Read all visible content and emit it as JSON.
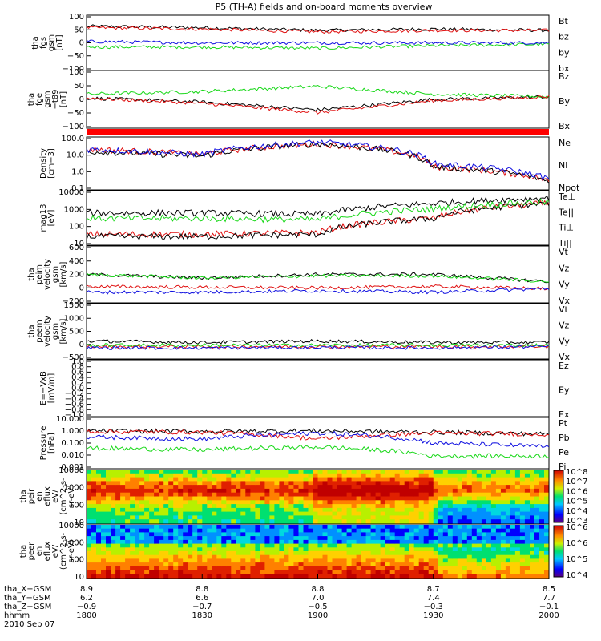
{
  "title": "P5 (TH-A) fields and on-board moments overview",
  "colors": {
    "black": "#000000",
    "red": "#e01010",
    "green": "#18d818",
    "blue": "#1010e0",
    "bar_red": "#ff0000"
  },
  "panels": [
    {
      "id": "fgs",
      "ylabel": [
        "tha",
        "fgs",
        "gsm",
        "[nT]"
      ],
      "ticks": [
        "100",
        "50",
        "0",
        "−50",
        "−100"
      ],
      "legend": [
        {
          "text": "Bt",
          "color": "black"
        },
        {
          "text": "bz",
          "color": "red"
        },
        {
          "text": "by",
          "color": "green"
        },
        {
          "text": "bx",
          "color": "blue"
        }
      ]
    },
    {
      "id": "fge",
      "ylabel": [
        "tha",
        "fge",
        "gsm",
        "−t89",
        "[nT]"
      ],
      "ticks": [
        "100",
        "50",
        "0",
        "−50",
        "−100"
      ],
      "legend": [
        {
          "text": "Bz",
          "color": "black"
        },
        {
          "text": "By",
          "color": "green"
        },
        {
          "text": "Bx",
          "color": "red"
        }
      ]
    },
    {
      "id": "density",
      "ylabel": [
        "Density",
        "[cm−3]"
      ],
      "ticks": [
        "100.0",
        "10.0",
        "1.0",
        "0.1"
      ],
      "legend": [
        {
          "text": "Ne",
          "color": "red"
        },
        {
          "text": "Ni",
          "color": "black"
        },
        {
          "text": "Npot",
          "color": "blue"
        }
      ]
    },
    {
      "id": "temp",
      "ylabel": [
        "mag13",
        "[eV]"
      ],
      "ticks": [
        "10000",
        "1000",
        "100",
        "10"
      ],
      "legend": [
        {
          "text": "Te⊥",
          "color": "red"
        },
        {
          "text": "Te||",
          "color": "black"
        },
        {
          "text": "Ti⊥",
          "color": "black"
        },
        {
          "text": "Ti||",
          "color": "green"
        }
      ]
    },
    {
      "id": "peim",
      "ylabel": [
        "tha",
        "peim",
        "velocity",
        "gsm",
        "[km/s]"
      ],
      "ticks": [
        "600",
        "400",
        "200",
        "0",
        "−200"
      ],
      "legend": [
        {
          "text": "Vt",
          "color": "black"
        },
        {
          "text": "Vz",
          "color": "red"
        },
        {
          "text": "Vy",
          "color": "green"
        },
        {
          "text": "Vx",
          "color": "blue"
        }
      ]
    },
    {
      "id": "peem",
      "ylabel": [
        "tha",
        "peem",
        "velocity",
        "gsm",
        "[km/s]"
      ],
      "ticks": [
        "1500",
        "1000",
        "500",
        "0",
        "−500"
      ],
      "legend": [
        {
          "text": "Vt",
          "color": "black"
        },
        {
          "text": "Vz",
          "color": "red"
        },
        {
          "text": "Vy",
          "color": "green"
        },
        {
          "text": "Vx",
          "color": "blue"
        }
      ]
    },
    {
      "id": "efield",
      "ylabel": [
        "E=−VxB",
        "[mV/m]"
      ],
      "ticks": [
        "1.0",
        "0.8",
        "0.6",
        "0.4",
        "0.2",
        "0.0",
        "−0.2",
        "−0.4",
        "−0.6",
        "−0.8",
        "−1.0"
      ],
      "legend": [
        {
          "text": "Ez",
          "color": "red"
        },
        {
          "text": "Ey",
          "color": "green"
        },
        {
          "text": "Ex",
          "color": "blue"
        }
      ]
    },
    {
      "id": "pressure",
      "ylabel": [
        "Pressure",
        "[nPa]"
      ],
      "ticks": [
        "10.000",
        "1.000",
        "0.100",
        "0.010",
        "0.001"
      ],
      "legend": [
        {
          "text": "Pt",
          "color": "black"
        },
        {
          "text": "Pb",
          "color": "red"
        },
        {
          "text": "Pe",
          "color": "green"
        },
        {
          "text": "Pi",
          "color": "blue"
        }
      ]
    },
    {
      "id": "peir",
      "ylabel": [
        "tha",
        "peir",
        "en",
        "eflux",
        "eV/",
        "(cm^2-s-",
        "sr-eV)"
      ],
      "ticks": [
        "10000",
        "1000",
        "100",
        "10"
      ],
      "colorbar_ticks": [
        "10^8",
        "10^7",
        "10^6",
        "10^5",
        "10^4",
        "10^3"
      ]
    },
    {
      "id": "peer",
      "ylabel": [
        "tha",
        "peer",
        "en",
        "eflux",
        "eV/",
        "(cm^2-s-",
        "sr-eV)"
      ],
      "ticks": [
        "10000",
        "1000",
        "100",
        "10"
      ],
      "colorbar_ticks": [
        "10^6",
        "10^6",
        "10^5",
        "10^4"
      ]
    }
  ],
  "xaxis": {
    "rows": [
      {
        "label": "tha_X−GSM",
        "values": [
          "8.9",
          "8.8",
          "8.8",
          "8.7",
          "8.5"
        ]
      },
      {
        "label": "tha_Y−GSM",
        "values": [
          "6.2",
          "6.6",
          "7.0",
          "7.4",
          "7.7"
        ]
      },
      {
        "label": "tha_Z−GSM",
        "values": [
          "−0.9",
          "−0.7",
          "−0.5",
          "−0.3",
          "−0.1"
        ]
      },
      {
        "label": "hhmm",
        "values": [
          "1800",
          "1830",
          "1900",
          "1930",
          "2000"
        ]
      }
    ],
    "date": "2010 Sep 07"
  },
  "chart_data": {
    "type": "line",
    "title": "P5 (TH-A) fields and on-board moments overview",
    "x": [
      "1800",
      "1830",
      "1900",
      "1930",
      "2000"
    ],
    "xlabel": "hhmm",
    "date": "2010 Sep 07",
    "panels": [
      {
        "name": "tha fgs gsm [nT]",
        "ylim": [
          -100,
          100
        ],
        "series": [
          {
            "name": "Bt",
            "color": "black",
            "values": [
              60,
              55,
              45,
              50,
              45
            ]
          },
          {
            "name": "bz",
            "color": "red",
            "values": [
              55,
              50,
              40,
              45,
              45
            ]
          },
          {
            "name": "by",
            "color": "green",
            "values": [
              -15,
              -15,
              -20,
              -10,
              -5
            ]
          },
          {
            "name": "bx",
            "color": "blue",
            "values": [
              5,
              0,
              0,
              0,
              0
            ]
          }
        ]
      },
      {
        "name": "tha fge gsm -t89 [nT]",
        "ylim": [
          -120,
          100
        ],
        "series": [
          {
            "name": "Bz",
            "color": "black",
            "values": [
              -5,
              -20,
              -50,
              -10,
              0
            ]
          },
          {
            "name": "By",
            "color": "green",
            "values": [
              10,
              20,
              40,
              10,
              0
            ]
          },
          {
            "name": "Bx",
            "color": "red",
            "values": [
              -5,
              -25,
              -60,
              -15,
              0
            ]
          }
        ]
      },
      {
        "name": "Density [cm-3]",
        "scale": "log",
        "ylim": [
          0.1,
          100
        ],
        "series": [
          {
            "name": "Ne",
            "color": "red",
            "values": [
              20,
              10,
              40,
              2,
              0.3
            ]
          },
          {
            "name": "Ni",
            "color": "black",
            "values": [
              15,
              8,
              40,
              2,
              0.3
            ]
          },
          {
            "name": "Npot",
            "color": "blue",
            "values": [
              20,
              10,
              50,
              3,
              0.4
            ]
          }
        ]
      },
      {
        "name": "mag13 [eV]",
        "scale": "log",
        "ylim": [
          10,
          10000
        ],
        "series": [
          {
            "name": "Te⊥",
            "color": "red",
            "values": [
              40,
              40,
              50,
              300,
              2000
            ]
          },
          {
            "name": "Te||",
            "color": "black",
            "values": [
              30,
              30,
              40,
              300,
              2000
            ]
          },
          {
            "name": "Ti⊥",
            "color": "black",
            "values": [
              600,
              600,
              500,
              2000,
              4000
            ]
          },
          {
            "name": "Ti||",
            "color": "green",
            "values": [
              300,
              300,
              250,
              1000,
              2500
            ]
          }
        ]
      },
      {
        "name": "tha peim velocity gsm [km/s]",
        "ylim": [
          -200,
          600
        ],
        "series": [
          {
            "name": "Vt",
            "color": "black",
            "values": [
              200,
              150,
              200,
              200,
              100
            ]
          },
          {
            "name": "Vz",
            "color": "red",
            "values": [
              30,
              20,
              10,
              30,
              0
            ]
          },
          {
            "name": "Vy",
            "color": "green",
            "values": [
              200,
              150,
              180,
              180,
              100
            ]
          },
          {
            "name": "Vx",
            "color": "blue",
            "values": [
              -50,
              -50,
              -30,
              -50,
              0
            ]
          }
        ]
      },
      {
        "name": "tha peem velocity gsm [km/s]",
        "ylim": [
          -500,
          1500
        ],
        "series": [
          {
            "name": "Vt",
            "color": "black",
            "values": [
              150,
              100,
              150,
              100,
              100
            ]
          },
          {
            "name": "Vz",
            "color": "red",
            "values": [
              -50,
              -50,
              -50,
              -50,
              -50
            ]
          },
          {
            "name": "Vy",
            "color": "green",
            "values": [
              0,
              0,
              0,
              0,
              0
            ]
          },
          {
            "name": "Vx",
            "color": "blue",
            "values": [
              -100,
              -100,
              -80,
              -100,
              -50
            ]
          }
        ]
      },
      {
        "name": "E=-VxB [mV/m]",
        "ylim": [
          -1,
          1
        ],
        "series": [
          {
            "name": "Ez",
            "color": "red",
            "values": []
          },
          {
            "name": "Ey",
            "color": "green",
            "values": []
          },
          {
            "name": "Ex",
            "color": "blue",
            "values": []
          }
        ]
      },
      {
        "name": "Pressure [nPa]",
        "scale": "log",
        "ylim": [
          0.001,
          10
        ],
        "series": [
          {
            "name": "Pt",
            "color": "black",
            "values": [
              0.9,
              0.8,
              0.9,
              0.7,
              0.5
            ]
          },
          {
            "name": "Pb",
            "color": "red",
            "values": [
              0.8,
              0.7,
              0.2,
              0.6,
              0.5
            ]
          },
          {
            "name": "Pe",
            "color": "green",
            "values": [
              0.04,
              0.03,
              0.05,
              0.01,
              0.01
            ]
          },
          {
            "name": "Pi",
            "color": "blue",
            "values": [
              0.3,
              0.2,
              0.6,
              0.1,
              0.05
            ]
          }
        ]
      }
    ],
    "spectrograms": [
      {
        "name": "tha peir en eflux",
        "ylim": [
          10,
          10000
        ],
        "scale": "log",
        "colorbar": [
          1000,
          100000000
        ]
      },
      {
        "name": "tha peer en eflux",
        "ylim": [
          10,
          10000
        ],
        "scale": "log",
        "colorbar": [
          10000,
          1000000
        ]
      }
    ],
    "grid": false,
    "legend": "right"
  }
}
